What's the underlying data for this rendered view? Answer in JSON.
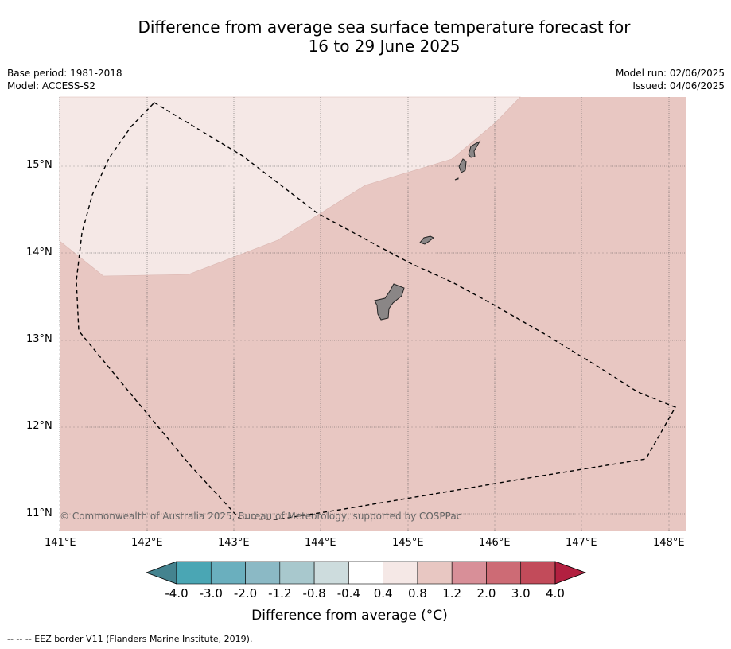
{
  "title_line1": "Difference from average sea surface temperature forecast for",
  "title_line2": "16 to 29 June 2025",
  "base_period": "Base period: 1981-2018",
  "model": "Model: ACCESS-S2",
  "model_run": "Model run: 02/06/2025",
  "issued": "Issued: 04/06/2025",
  "copyright": "© Commonwealth of Australia 2025, Bureau of Meteorology, supported by COSPPac",
  "lat_labels": [
    "15°N",
    "14°N",
    "13°N",
    "12°N",
    "11°N"
  ],
  "lon_labels": [
    "141°E",
    "142°E",
    "143°E",
    "144°E",
    "145°E",
    "146°E",
    "147°E",
    "148°E"
  ],
  "colorbar": {
    "ticks": [
      "-4.0",
      "-3.0",
      "-2.0",
      "-1.2",
      "-0.8",
      "-0.4",
      "0.4",
      "0.8",
      "1.2",
      "2.0",
      "3.0",
      "4.0"
    ],
    "colors": [
      "#44838f",
      "#4aa6b4",
      "#6aafbe",
      "#8bb9c5",
      "#a8c8cd",
      "#cddcdd",
      "#ffffff",
      "#f5e8e6",
      "#e8c7c2",
      "#d88f98",
      "#cd6b75",
      "#c24b5a",
      "#b22040"
    ],
    "label": "Difference from average ($^\\circ$C)",
    "label_display": "Difference from average (°C)"
  },
  "legend_footer": "--  --  -- EEZ border V11 (Flanders Marine Institute, 2019).",
  "map_colors": {
    "anomaly_0.4_0.8": "#f5e8e6",
    "anomaly_0.8_1.2": "#e8c7c2",
    "land": "#8a8686"
  }
}
